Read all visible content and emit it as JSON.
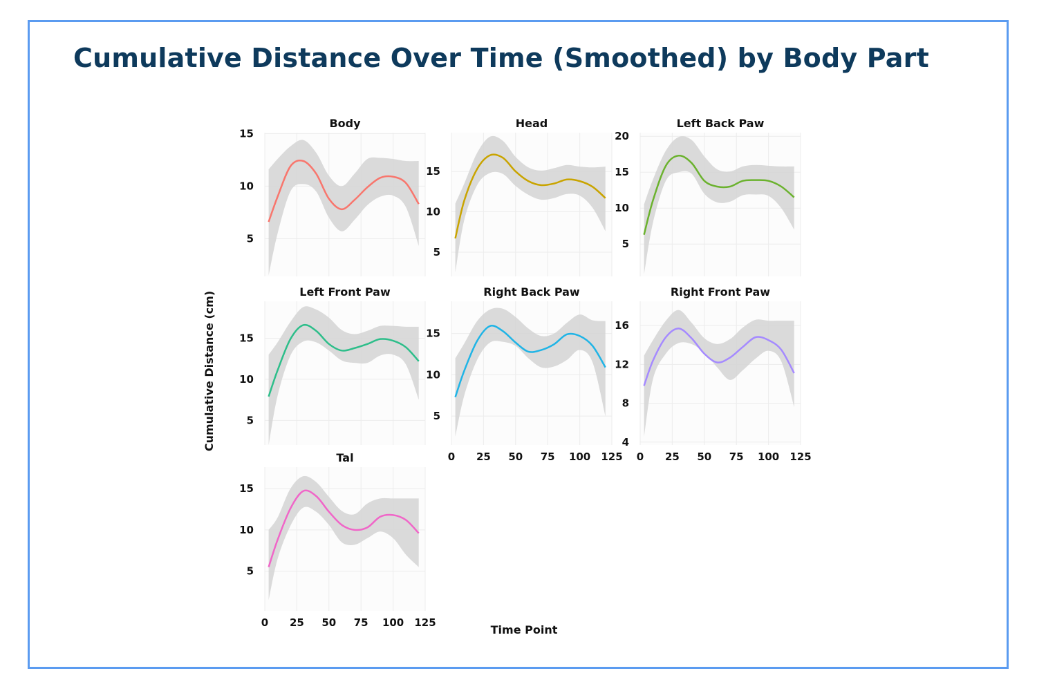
{
  "title": "Cumulative Distance Over Time (Smoothed) by Body Part",
  "colors": {
    "border": "#5b9bf0",
    "title": "#0e3a5c",
    "band": "#d6d6d6"
  },
  "chart_data": {
    "type": "line",
    "title": "Cumulative Distance Over Time (Smoothed) by Body Part",
    "xlabel": "Time Point",
    "ylabel": "Cumulative Distance (cm)",
    "xlim": [
      0,
      125
    ],
    "xticks": [
      0,
      25,
      50,
      75,
      100,
      125
    ],
    "grid": true,
    "x": [
      3,
      10,
      20,
      30,
      40,
      50,
      60,
      70,
      80,
      90,
      100,
      110,
      120
    ],
    "panels": [
      {
        "name": "Body",
        "color": "#F8766D",
        "ylim": [
          1.4,
          15.1
        ],
        "yticks": [
          5,
          10,
          15
        ],
        "values": [
          6.6,
          9.0,
          11.9,
          12.4,
          11.2,
          8.8,
          7.8,
          8.7,
          9.9,
          10.8,
          10.9,
          10.3,
          8.3
        ],
        "upper": [
          11.6,
          12.6,
          13.8,
          14.4,
          13.2,
          11.0,
          10.0,
          11.2,
          12.6,
          12.7,
          12.6,
          12.4,
          12.4
        ],
        "lower": [
          1.5,
          5.5,
          9.5,
          10.2,
          9.5,
          7.0,
          5.7,
          6.8,
          8.2,
          9.0,
          9.1,
          8.0,
          4.3
        ]
      },
      {
        "name": "Head",
        "color": "#C9A400",
        "ylim": [
          2.0,
          19.8
        ],
        "yticks": [
          5,
          10,
          15
        ],
        "values": [
          6.7,
          11.4,
          15.3,
          17.0,
          16.7,
          15.0,
          13.8,
          13.3,
          13.5,
          14.0,
          13.8,
          13.1,
          11.7
        ],
        "upper": [
          11.0,
          13.5,
          17.3,
          19.3,
          18.8,
          16.8,
          15.5,
          15.1,
          15.4,
          15.8,
          15.6,
          15.5,
          15.6
        ],
        "lower": [
          2.5,
          9.0,
          13.3,
          14.8,
          14.7,
          13.2,
          12.1,
          11.5,
          11.7,
          12.2,
          12.0,
          10.5,
          7.6
        ]
      },
      {
        "name": "Left Back Paw",
        "color": "#6BB22E",
        "ylim": [
          0.5,
          20.5
        ],
        "yticks": [
          5,
          10,
          15,
          20
        ],
        "values": [
          6.3,
          11.1,
          15.9,
          17.3,
          16.3,
          13.8,
          13.0,
          13.0,
          13.8,
          13.9,
          13.8,
          13.0,
          11.5
        ],
        "upper": [
          10.5,
          14.0,
          18.0,
          19.9,
          19.5,
          17.2,
          15.4,
          15.1,
          15.8,
          16.0,
          15.9,
          15.8,
          15.8
        ],
        "lower": [
          0.8,
          8.0,
          13.8,
          15.0,
          14.8,
          12.0,
          10.8,
          10.9,
          11.8,
          11.9,
          11.7,
          10.0,
          7.0
        ]
      },
      {
        "name": "Left Front Paw",
        "color": "#2DBE8A",
        "ylim": [
          2.0,
          19.5
        ],
        "yticks": [
          5,
          10,
          15
        ],
        "values": [
          7.9,
          11.1,
          14.9,
          16.6,
          15.9,
          14.3,
          13.5,
          13.8,
          14.3,
          14.9,
          14.7,
          13.9,
          12.2
        ],
        "upper": [
          13.0,
          14.5,
          17.0,
          18.8,
          18.5,
          17.5,
          16.0,
          15.5,
          15.9,
          16.5,
          16.5,
          16.4,
          16.4
        ],
        "lower": [
          2.0,
          8.0,
          12.9,
          14.6,
          14.5,
          13.5,
          12.3,
          12.0,
          12.0,
          12.9,
          13.0,
          11.8,
          7.5
        ]
      },
      {
        "name": "Right Back Paw",
        "color": "#1FB4E6",
        "ylim": [
          1.5,
          18.9
        ],
        "yticks": [
          5,
          10,
          15
        ],
        "values": [
          7.3,
          10.5,
          14.1,
          15.9,
          15.3,
          13.9,
          12.8,
          13.0,
          13.7,
          14.9,
          14.7,
          13.5,
          10.9
        ],
        "upper": [
          12.0,
          13.8,
          16.5,
          17.9,
          18.0,
          17.0,
          15.6,
          14.7,
          15.0,
          16.3,
          17.3,
          16.6,
          16.5
        ],
        "lower": [
          2.5,
          7.5,
          11.8,
          13.9,
          14.0,
          13.5,
          12.0,
          10.9,
          11.0,
          11.8,
          13.0,
          11.5,
          5.0
        ]
      },
      {
        "name": "Right Front Paw",
        "color": "#A58AFF",
        "ylim": [
          3.7,
          18.5
        ],
        "yticks": [
          4,
          8,
          12,
          16
        ],
        "values": [
          9.8,
          12.4,
          14.8,
          15.7,
          14.7,
          13.1,
          12.2,
          12.7,
          13.8,
          14.8,
          14.5,
          13.5,
          11.1
        ],
        "upper": [
          12.9,
          14.5,
          16.5,
          17.6,
          16.3,
          14.7,
          14.1,
          14.6,
          15.8,
          16.6,
          16.5,
          16.5,
          16.5
        ],
        "lower": [
          4.5,
          10.5,
          13.1,
          14.2,
          14.1,
          13.2,
          11.7,
          10.4,
          11.4,
          12.6,
          13.4,
          12.3,
          7.6
        ]
      },
      {
        "name": "Tal",
        "color": "#F066C8",
        "ylim": [
          0.2,
          17.6
        ],
        "yticks": [
          5,
          10,
          15
        ],
        "values": [
          5.5,
          8.8,
          12.6,
          14.7,
          14.1,
          12.2,
          10.6,
          10.0,
          10.3,
          11.6,
          11.8,
          11.2,
          9.6
        ],
        "upper": [
          10.0,
          11.5,
          15.0,
          16.5,
          15.8,
          14.0,
          12.3,
          11.9,
          13.2,
          13.8,
          13.8,
          13.8,
          13.8
        ],
        "lower": [
          1.5,
          6.5,
          10.5,
          12.7,
          12.2,
          10.6,
          8.5,
          8.2,
          9.0,
          9.8,
          9.0,
          7.0,
          5.5
        ]
      }
    ]
  }
}
